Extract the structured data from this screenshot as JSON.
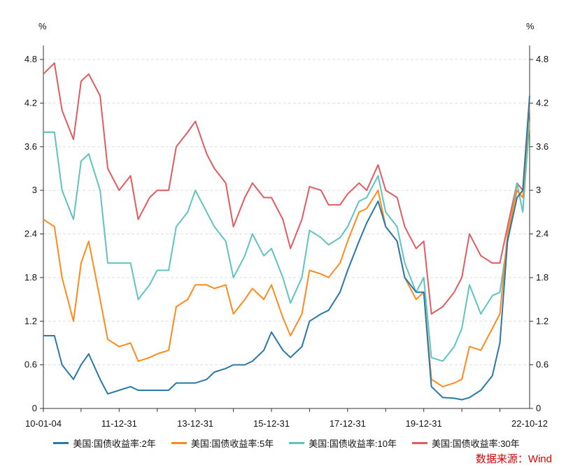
{
  "chart_data": {
    "type": "line",
    "left_unit": "%",
    "right_unit": "%",
    "ylim": [
      0,
      4.8
    ],
    "yticks": [
      "0",
      "0.6",
      "1.2",
      "1.8",
      "2.4",
      "3",
      "3.6",
      "4.2",
      "4.8"
    ],
    "xlim": [
      2010.01,
      2022.78
    ],
    "xticks": [
      {
        "label": "10-01-04",
        "t": 2010.01
      },
      {
        "label": "11-12-31",
        "t": 2012.0
      },
      {
        "label": "13-12-31",
        "t": 2014.0
      },
      {
        "label": "15-12-31",
        "t": 2016.0
      },
      {
        "label": "17-12-31",
        "t": 2018.0
      },
      {
        "label": "19-12-31",
        "t": 2020.0
      },
      {
        "label": "22-10-12",
        "t": 2022.78
      }
    ],
    "grid": true,
    "legend_position": "bottom",
    "source": "数据来源：Wind",
    "x": [
      2010.01,
      2010.3,
      2010.5,
      2010.8,
      2011.0,
      2011.2,
      2011.5,
      2011.7,
      2012.0,
      2012.3,
      2012.5,
      2012.8,
      2013.0,
      2013.3,
      2013.5,
      2013.8,
      2014.0,
      2014.3,
      2014.5,
      2014.8,
      2015.0,
      2015.3,
      2015.5,
      2015.8,
      2016.0,
      2016.3,
      2016.5,
      2016.8,
      2017.0,
      2017.3,
      2017.5,
      2017.8,
      2018.0,
      2018.3,
      2018.5,
      2018.8,
      2019.0,
      2019.3,
      2019.5,
      2019.8,
      2020.0,
      2020.2,
      2020.5,
      2020.8,
      2021.0,
      2021.2,
      2021.5,
      2021.8,
      2022.0,
      2022.2,
      2022.45,
      2022.6,
      2022.78
    ],
    "series": [
      {
        "name": "美国:国债收益率:2年",
        "color": "#2a78a8",
        "values": [
          1.0,
          1.0,
          0.6,
          0.4,
          0.6,
          0.75,
          0.4,
          0.2,
          0.25,
          0.3,
          0.25,
          0.25,
          0.25,
          0.25,
          0.35,
          0.35,
          0.35,
          0.4,
          0.5,
          0.55,
          0.6,
          0.6,
          0.65,
          0.8,
          1.05,
          0.8,
          0.7,
          0.85,
          1.2,
          1.3,
          1.35,
          1.6,
          1.9,
          2.3,
          2.55,
          2.85,
          2.5,
          2.3,
          1.8,
          1.6,
          1.6,
          0.3,
          0.15,
          0.14,
          0.12,
          0.15,
          0.25,
          0.45,
          0.9,
          2.3,
          2.9,
          3.0,
          4.3
        ]
      },
      {
        "name": "美国:国债收益率:5年",
        "color": "#ff8a1c",
        "values": [
          2.6,
          2.5,
          1.8,
          1.2,
          2.0,
          2.3,
          1.5,
          0.95,
          0.85,
          0.9,
          0.65,
          0.7,
          0.75,
          0.8,
          1.4,
          1.5,
          1.7,
          1.7,
          1.65,
          1.7,
          1.3,
          1.5,
          1.65,
          1.5,
          1.7,
          1.25,
          1.0,
          1.3,
          1.9,
          1.85,
          1.8,
          2.0,
          2.3,
          2.7,
          2.75,
          3.0,
          2.5,
          2.3,
          1.8,
          1.5,
          1.6,
          0.4,
          0.3,
          0.35,
          0.4,
          0.85,
          0.8,
          1.1,
          1.3,
          2.4,
          3.0,
          2.9,
          4.2
        ]
      },
      {
        "name": "美国:国债收益率:10年",
        "color": "#5fc3c0",
        "values": [
          3.8,
          3.8,
          3.0,
          2.6,
          3.4,
          3.5,
          3.0,
          2.0,
          2.0,
          2.0,
          1.5,
          1.7,
          1.9,
          1.9,
          2.5,
          2.7,
          3.0,
          2.7,
          2.5,
          2.3,
          1.8,
          2.1,
          2.4,
          2.1,
          2.2,
          1.8,
          1.45,
          1.8,
          2.45,
          2.35,
          2.25,
          2.35,
          2.5,
          2.85,
          2.9,
          3.2,
          2.7,
          2.5,
          2.0,
          1.6,
          1.8,
          0.7,
          0.65,
          0.85,
          1.1,
          1.7,
          1.3,
          1.55,
          1.6,
          2.3,
          3.1,
          2.7,
          3.95
        ]
      },
      {
        "name": "美国:国债收益率:30年",
        "color": "#e05c5e",
        "values": [
          4.6,
          4.75,
          4.1,
          3.7,
          4.5,
          4.6,
          4.3,
          3.3,
          3.0,
          3.2,
          2.6,
          2.9,
          3.0,
          3.0,
          3.6,
          3.8,
          3.95,
          3.5,
          3.3,
          3.1,
          2.5,
          2.9,
          3.1,
          2.9,
          2.9,
          2.6,
          2.2,
          2.6,
          3.05,
          3.0,
          2.8,
          2.8,
          2.95,
          3.1,
          3.0,
          3.35,
          3.0,
          2.9,
          2.5,
          2.2,
          2.3,
          1.3,
          1.4,
          1.6,
          1.8,
          2.4,
          2.1,
          2.0,
          2.0,
          2.5,
          3.1,
          3.0,
          3.9
        ]
      }
    ]
  }
}
